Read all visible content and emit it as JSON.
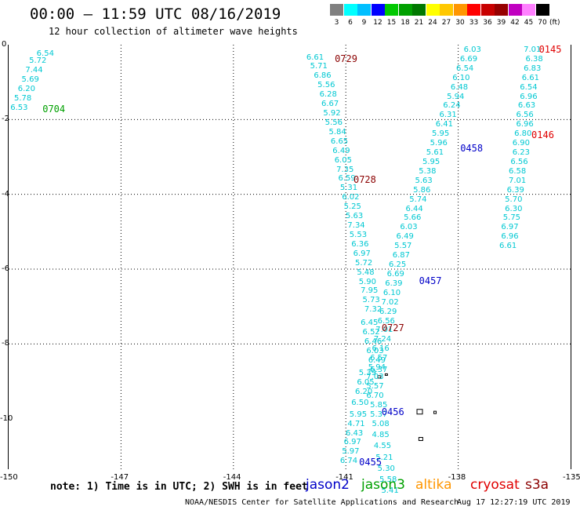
{
  "header": {
    "title": "00:00 – 11:59 UTC 08/16/2019",
    "subtitle": "12 hour collection of altimeter wave heights"
  },
  "legend": {
    "unit": "(ft)",
    "bins": [
      {
        "label": "3",
        "color": "#808080"
      },
      {
        "label": "6",
        "color": "#00ffff"
      },
      {
        "label": "9",
        "color": "#00bfff"
      },
      {
        "label": "12",
        "color": "#0000ff"
      },
      {
        "label": "15",
        "color": "#00c800"
      },
      {
        "label": "18",
        "color": "#00a000"
      },
      {
        "label": "21",
        "color": "#007800"
      },
      {
        "label": "24",
        "color": "#ffff00"
      },
      {
        "label": "27",
        "color": "#ffc800"
      },
      {
        "label": "30",
        "color": "#ff9600"
      },
      {
        "label": "33",
        "color": "#ff0000"
      },
      {
        "label": "36",
        "color": "#c80000"
      },
      {
        "label": "39",
        "color": "#960000"
      },
      {
        "label": "42",
        "color": "#c000c0"
      },
      {
        "label": "45",
        "color": "#ff80ff"
      },
      {
        "label": "70",
        "color": "#000000"
      }
    ]
  },
  "axes": {
    "y_ticks": [
      "0",
      "-2",
      "-4",
      "-6",
      "-8",
      "-10"
    ],
    "x_ticks": [
      "-150",
      "-147",
      "-144",
      "-141",
      "-138",
      "-135"
    ]
  },
  "colors": {
    "wave": "#00c8d2",
    "jason2": "#0000c8",
    "jason3": "#00a000",
    "altika": "#ff9600",
    "cryosat": "#e00000",
    "s3a": "#8b0000"
  },
  "wave_points": [
    {
      "lon": -149.4,
      "lat": -0.1,
      "v": "6.54"
    },
    {
      "lon": -149.6,
      "lat": -0.3,
      "v": "5.72"
    },
    {
      "lon": -149.7,
      "lat": -0.55,
      "v": "7.44"
    },
    {
      "lon": -149.8,
      "lat": -0.8,
      "v": "5.69"
    },
    {
      "lon": -149.9,
      "lat": -1.05,
      "v": "6.20"
    },
    {
      "lon": -150.0,
      "lat": -1.3,
      "v": "5.78"
    },
    {
      "lon": -150.1,
      "lat": -1.55,
      "v": "6.53"
    },
    {
      "lon": -142.2,
      "lat": -0.2,
      "v": "6.61"
    },
    {
      "lon": -142.1,
      "lat": -0.45,
      "v": "5.71"
    },
    {
      "lon": -142.0,
      "lat": -0.7,
      "v": "6.86"
    },
    {
      "lon": -141.9,
      "lat": -0.95,
      "v": "5.56"
    },
    {
      "lon": -141.85,
      "lat": -1.2,
      "v": "6.28"
    },
    {
      "lon": -141.8,
      "lat": -1.45,
      "v": "6.67"
    },
    {
      "lon": -141.75,
      "lat": -1.7,
      "v": "5.92"
    },
    {
      "lon": -141.7,
      "lat": -1.95,
      "v": "5.56"
    },
    {
      "lon": -141.6,
      "lat": -2.2,
      "v": "5.84"
    },
    {
      "lon": -141.55,
      "lat": -2.45,
      "v": "6.65"
    },
    {
      "lon": -141.5,
      "lat": -2.7,
      "v": "6.49"
    },
    {
      "lon": -141.45,
      "lat": -2.95,
      "v": "6.05"
    },
    {
      "lon": -141.4,
      "lat": -3.2,
      "v": "7.35"
    },
    {
      "lon": -141.35,
      "lat": -3.45,
      "v": "6.59"
    },
    {
      "lon": -141.3,
      "lat": -3.7,
      "v": "5.31"
    },
    {
      "lon": -141.25,
      "lat": -3.95,
      "v": "6.02"
    },
    {
      "lon": -141.2,
      "lat": -4.2,
      "v": "5.25"
    },
    {
      "lon": -141.15,
      "lat": -4.45,
      "v": "5.63"
    },
    {
      "lon": -141.1,
      "lat": -4.7,
      "v": "7.34"
    },
    {
      "lon": -141.05,
      "lat": -4.95,
      "v": "5.53"
    },
    {
      "lon": -141.0,
      "lat": -5.2,
      "v": "6.36"
    },
    {
      "lon": -140.95,
      "lat": -5.45,
      "v": "6.97"
    },
    {
      "lon": -140.9,
      "lat": -5.7,
      "v": "5.72"
    },
    {
      "lon": -140.85,
      "lat": -5.95,
      "v": "5.48"
    },
    {
      "lon": -140.8,
      "lat": -6.2,
      "v": "5.90"
    },
    {
      "lon": -140.75,
      "lat": -6.45,
      "v": "7.95"
    },
    {
      "lon": -140.7,
      "lat": -6.7,
      "v": "5.73"
    },
    {
      "lon": -140.65,
      "lat": -6.95,
      "v": "7.32"
    },
    {
      "lon": -140.75,
      "lat": -7.3,
      "v": "6.45"
    },
    {
      "lon": -140.7,
      "lat": -7.55,
      "v": "6.52"
    },
    {
      "lon": -140.65,
      "lat": -7.8,
      "v": "6.46"
    },
    {
      "lon": -140.6,
      "lat": -8.05,
      "v": "6.03"
    },
    {
      "lon": -140.55,
      "lat": -8.3,
      "v": "6.49"
    },
    {
      "lon": -140.5,
      "lat": -8.55,
      "v": "6.37"
    },
    {
      "lon": -140.8,
      "lat": -8.65,
      "v": "5.39"
    },
    {
      "lon": -140.85,
      "lat": -8.9,
      "v": "6.05"
    },
    {
      "lon": -140.9,
      "lat": -9.15,
      "v": "6.20"
    },
    {
      "lon": -141.0,
      "lat": -9.45,
      "v": "6.50"
    },
    {
      "lon": -141.05,
      "lat": -9.75,
      "v": "5.95"
    },
    {
      "lon": -141.1,
      "lat": -10.0,
      "v": "4.71"
    },
    {
      "lon": -141.15,
      "lat": -10.25,
      "v": "6.43"
    },
    {
      "lon": -141.2,
      "lat": -10.5,
      "v": "6.97"
    },
    {
      "lon": -141.25,
      "lat": -10.75,
      "v": "5.97"
    },
    {
      "lon": -141.3,
      "lat": -11.0,
      "v": "6.74"
    },
    {
      "lon": -138.0,
      "lat": 0.0,
      "v": "6.03"
    },
    {
      "lon": -138.1,
      "lat": -0.25,
      "v": "6.69"
    },
    {
      "lon": -138.2,
      "lat": -0.5,
      "v": "6.54"
    },
    {
      "lon": -138.3,
      "lat": -0.75,
      "v": "6.10"
    },
    {
      "lon": -138.35,
      "lat": -1.0,
      "v": "6.48"
    },
    {
      "lon": -138.45,
      "lat": -1.25,
      "v": "5.94"
    },
    {
      "lon": -138.55,
      "lat": -1.5,
      "v": "6.24"
    },
    {
      "lon": -138.65,
      "lat": -1.75,
      "v": "6.31"
    },
    {
      "lon": -138.75,
      "lat": -2.0,
      "v": "6.41"
    },
    {
      "lon": -138.85,
      "lat": -2.25,
      "v": "5.95"
    },
    {
      "lon": -138.9,
      "lat": -2.5,
      "v": "5.96"
    },
    {
      "lon": -139.0,
      "lat": -2.75,
      "v": "5.61"
    },
    {
      "lon": -139.1,
      "lat": -3.0,
      "v": "5.95"
    },
    {
      "lon": -139.2,
      "lat": -3.25,
      "v": "5.38"
    },
    {
      "lon": -139.3,
      "lat": -3.5,
      "v": "5.63"
    },
    {
      "lon": -139.35,
      "lat": -3.75,
      "v": "5.86"
    },
    {
      "lon": -139.45,
      "lat": -4.0,
      "v": "5.74"
    },
    {
      "lon": -139.55,
      "lat": -4.25,
      "v": "6.44"
    },
    {
      "lon": -139.6,
      "lat": -4.5,
      "v": "5.66"
    },
    {
      "lon": -139.7,
      "lat": -4.75,
      "v": "6.03"
    },
    {
      "lon": -139.8,
      "lat": -5.0,
      "v": "6.49"
    },
    {
      "lon": -139.85,
      "lat": -5.25,
      "v": "5.57"
    },
    {
      "lon": -139.9,
      "lat": -5.5,
      "v": "6.87"
    },
    {
      "lon": -140.0,
      "lat": -5.75,
      "v": "6.25"
    },
    {
      "lon": -140.05,
      "lat": -6.0,
      "v": "6.69"
    },
    {
      "lon": -140.1,
      "lat": -6.25,
      "v": "6.39"
    },
    {
      "lon": -140.15,
      "lat": -6.5,
      "v": "6.10"
    },
    {
      "lon": -140.2,
      "lat": -6.75,
      "v": "7.02"
    },
    {
      "lon": -140.25,
      "lat": -7.0,
      "v": "6.29"
    },
    {
      "lon": -140.3,
      "lat": -7.25,
      "v": "6.56"
    },
    {
      "lon": -140.35,
      "lat": -7.5,
      "v": "7.01"
    },
    {
      "lon": -140.4,
      "lat": -7.75,
      "v": "7.24"
    },
    {
      "lon": -140.45,
      "lat": -8.0,
      "v": "6.16"
    },
    {
      "lon": -140.5,
      "lat": -8.25,
      "v": "6.57"
    },
    {
      "lon": -140.55,
      "lat": -8.5,
      "v": "5.94"
    },
    {
      "lon": -140.6,
      "lat": -8.75,
      "v": "7.03"
    },
    {
      "lon": -140.6,
      "lat": -9.0,
      "v": "5.57"
    },
    {
      "lon": -140.6,
      "lat": -9.25,
      "v": "6.70"
    },
    {
      "lon": -140.5,
      "lat": -9.5,
      "v": "5.85"
    },
    {
      "lon": -140.5,
      "lat": -9.75,
      "v": "5.37"
    },
    {
      "lon": -140.45,
      "lat": -10.0,
      "v": "5.08"
    },
    {
      "lon": -140.45,
      "lat": -10.3,
      "v": "4.85"
    },
    {
      "lon": -140.4,
      "lat": -10.6,
      "v": "4.55"
    },
    {
      "lon": -140.35,
      "lat": -10.9,
      "v": "5.21"
    },
    {
      "lon": -140.3,
      "lat": -11.2,
      "v": "5.30"
    },
    {
      "lon": -140.25,
      "lat": -11.5,
      "v": "5.58"
    },
    {
      "lon": -140.2,
      "lat": -11.8,
      "v": "5.41"
    },
    {
      "lon": -136.4,
      "lat": 0.0,
      "v": "7.01"
    },
    {
      "lon": -136.35,
      "lat": -0.25,
      "v": "6.38"
    },
    {
      "lon": -136.4,
      "lat": -0.5,
      "v": "6.83"
    },
    {
      "lon": -136.45,
      "lat": -0.75,
      "v": "6.61"
    },
    {
      "lon": -136.5,
      "lat": -1.0,
      "v": "6.54"
    },
    {
      "lon": -136.5,
      "lat": -1.25,
      "v": "6.96"
    },
    {
      "lon": -136.55,
      "lat": -1.5,
      "v": "6.63"
    },
    {
      "lon": -136.6,
      "lat": -1.75,
      "v": "6.56"
    },
    {
      "lon": -136.6,
      "lat": -2.0,
      "v": "6.96"
    },
    {
      "lon": -136.65,
      "lat": -2.25,
      "v": "6.80"
    },
    {
      "lon": -136.7,
      "lat": -2.5,
      "v": "6.90"
    },
    {
      "lon": -136.7,
      "lat": -2.75,
      "v": "6.23"
    },
    {
      "lon": -136.75,
      "lat": -3.0,
      "v": "6.56"
    },
    {
      "lon": -136.8,
      "lat": -3.25,
      "v": "6.58"
    },
    {
      "lon": -136.8,
      "lat": -3.5,
      "v": "7.01"
    },
    {
      "lon": -136.85,
      "lat": -3.75,
      "v": "6.39"
    },
    {
      "lon": -136.9,
      "lat": -4.0,
      "v": "5.70"
    },
    {
      "lon": -136.9,
      "lat": -4.25,
      "v": "6.30"
    },
    {
      "lon": -136.95,
      "lat": -4.5,
      "v": "5.75"
    },
    {
      "lon": -137.0,
      "lat": -4.75,
      "v": "6.97"
    },
    {
      "lon": -137.0,
      "lat": -5.0,
      "v": "6.96"
    },
    {
      "lon": -137.05,
      "lat": -5.25,
      "v": "6.61"
    }
  ],
  "time_labels": [
    {
      "lon": -141.4,
      "lat": -0.2,
      "v": "0729",
      "sat": "s3a"
    },
    {
      "lon": -149.2,
      "lat": -1.55,
      "v": "0704",
      "sat": "jason3"
    },
    {
      "lon": -140.9,
      "lat": -3.45,
      "v": "0728",
      "sat": "s3a"
    },
    {
      "lon": -138.05,
      "lat": -2.6,
      "v": "0458",
      "sat": "jason2"
    },
    {
      "lon": -139.15,
      "lat": -6.15,
      "v": "0457",
      "sat": "jason2"
    },
    {
      "lon": -140.15,
      "lat": -7.4,
      "v": "0727",
      "sat": "s3a"
    },
    {
      "lon": -140.15,
      "lat": -9.65,
      "v": "0456",
      "sat": "jason2"
    },
    {
      "lon": -140.75,
      "lat": -11.0,
      "v": "0455",
      "sat": "jason2"
    },
    {
      "lon": -135.95,
      "lat": 0.05,
      "v": "0145",
      "sat": "cryosat"
    },
    {
      "lon": -136.15,
      "lat": -2.25,
      "v": "0146",
      "sat": "cryosat"
    }
  ],
  "footer": {
    "note": "note: 1) Time is in UTC; 2) SWH is in feet",
    "satellites": {
      "jason2": "jason2",
      "jason3": "jason3",
      "altika": "altika",
      "cryosat": "cryosat",
      "s3a": "s3a"
    },
    "credit": "NOAA/NESDIS Center for Satellite Applications and Research",
    "timestamp": "Aug 17 12:27:19 UTC 2019"
  }
}
